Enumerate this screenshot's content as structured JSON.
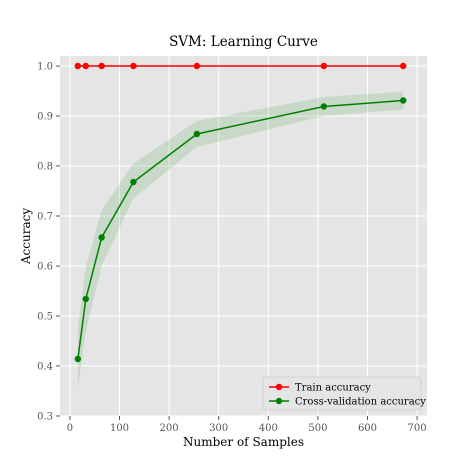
{
  "chart_data": {
    "type": "line",
    "title": "SVM: Learning Curve",
    "xlabel": "Number of Samples",
    "ylabel": "Accuracy",
    "xlim": [
      -20,
      720
    ],
    "ylim": [
      0.3,
      1.02
    ],
    "xticks": [
      0,
      100,
      200,
      300,
      400,
      500,
      600,
      700
    ],
    "yticks": [
      0.3,
      0.4,
      0.5,
      0.6,
      0.7,
      0.8,
      0.9,
      1.0
    ],
    "xtick_labels": [
      "0",
      "100",
      "200",
      "300",
      "400",
      "500",
      "600",
      "700"
    ],
    "ytick_labels": [
      "0.3",
      "0.4",
      "0.5",
      "0.6",
      "0.7",
      "0.8",
      "0.9",
      "1.0"
    ],
    "grid": true,
    "background": "#e5e5e5",
    "legend_position": "lower-right",
    "x": [
      16,
      32,
      64,
      128,
      256,
      512,
      672
    ],
    "series": [
      {
        "name": "Train accuracy",
        "color": "#ff0000",
        "values": [
          1.0,
          1.0,
          1.0,
          1.0,
          1.0,
          1.0,
          1.0
        ],
        "band_lower": [
          1.0,
          1.0,
          1.0,
          1.0,
          1.0,
          1.0,
          1.0
        ],
        "band_upper": [
          1.0,
          1.0,
          1.0,
          1.0,
          1.0,
          1.0,
          1.0
        ]
      },
      {
        "name": "Cross-validation accuracy",
        "color": "#008000",
        "values": [
          0.414,
          0.534,
          0.657,
          0.768,
          0.864,
          0.919,
          0.931
        ],
        "band_lower": [
          0.355,
          0.47,
          0.6,
          0.735,
          0.838,
          0.9,
          0.913
        ],
        "band_upper": [
          0.475,
          0.597,
          0.712,
          0.805,
          0.89,
          0.938,
          0.949
        ]
      }
    ]
  }
}
